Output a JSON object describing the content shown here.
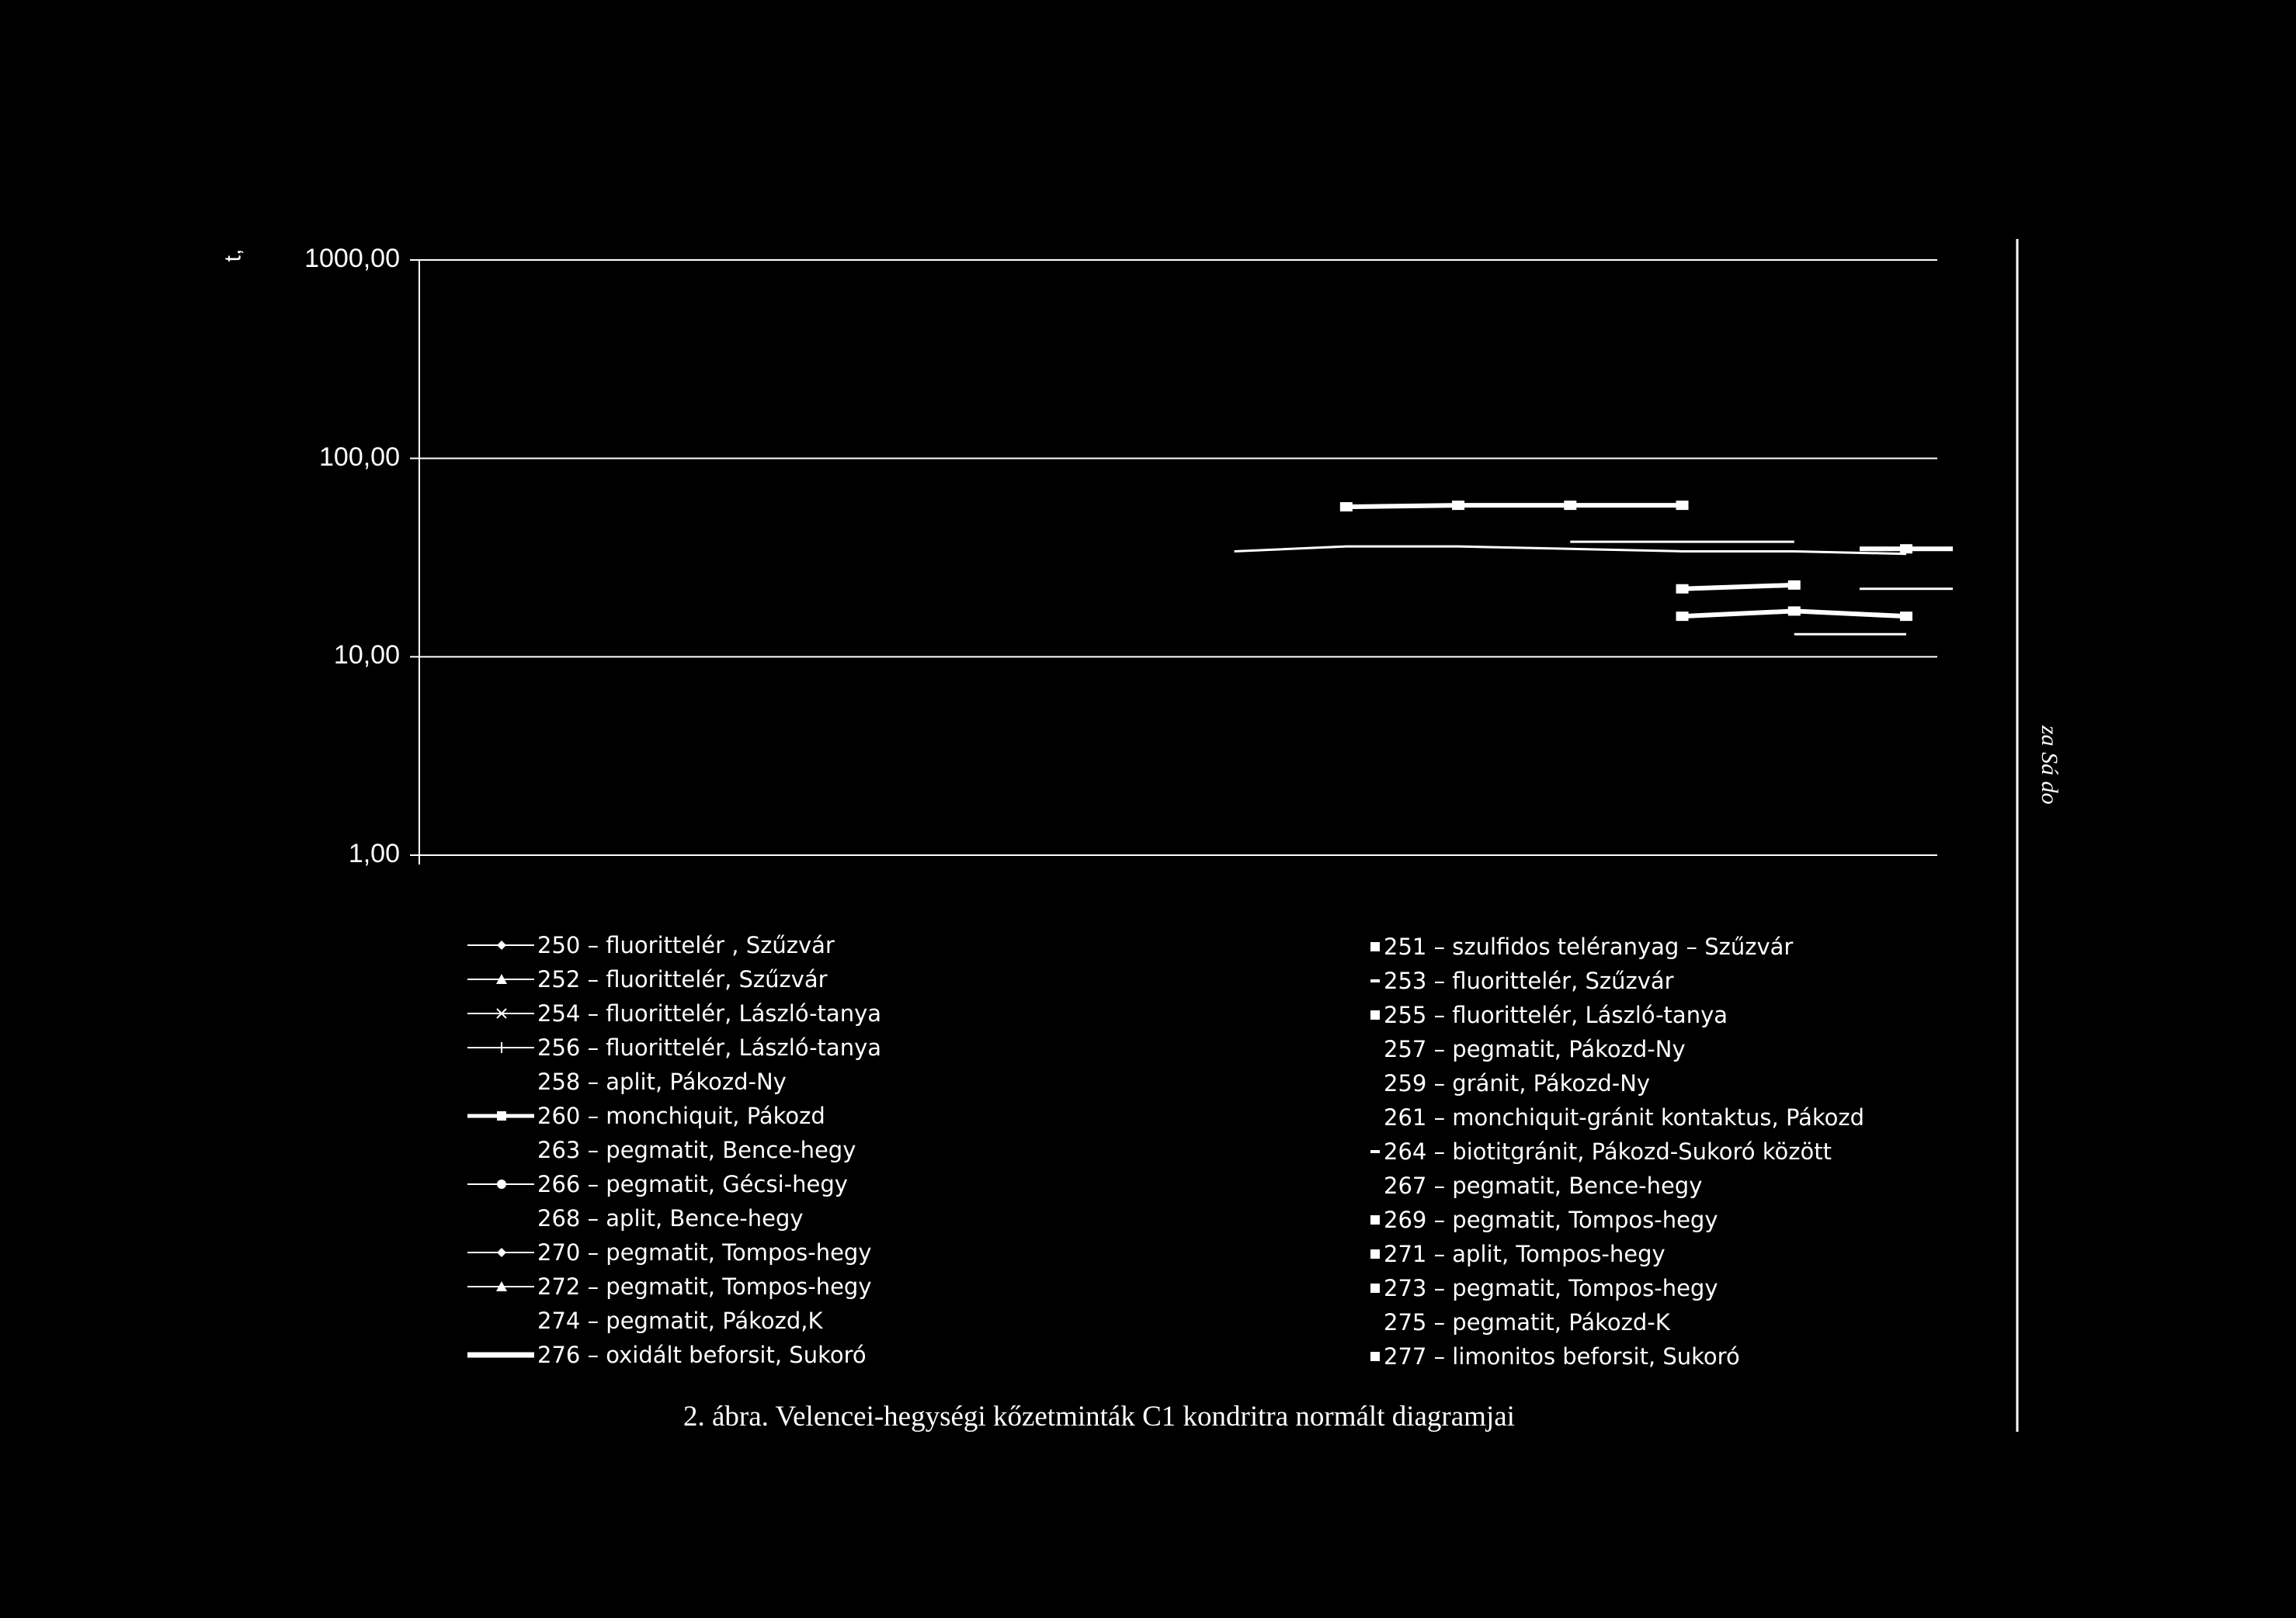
{
  "chart_data": {
    "type": "line",
    "title": "",
    "xlabel": "",
    "ylabel": "",
    "yscale": "log",
    "ylim": [
      1,
      1000
    ],
    "y_ticks": [
      "1000,00",
      "100,00",
      "10,00",
      "1,00"
    ],
    "y_tick_values": [
      1000,
      100,
      10,
      1
    ],
    "grid": true,
    "legend_position": "bottom",
    "x": [
      1,
      2,
      3,
      4,
      5,
      6,
      7,
      8,
      9,
      10,
      11,
      12,
      13,
      14
    ],
    "series": [
      {
        "name": "250 – fluorittelér , Szűzvár",
        "marker": "diamond",
        "values": [
          null,
          null,
          null,
          null,
          null,
          null,
          null,
          null,
          null,
          null,
          38,
          38,
          38,
          null
        ]
      },
      {
        "name": "252 – fluorittelér, Szűzvár",
        "marker": "triangle",
        "values": [
          null,
          null,
          null,
          null,
          null,
          null,
          null,
          null,
          null,
          null,
          null,
          null,
          null,
          null
        ]
      },
      {
        "name": "254 – fluorittelér, László-tanya",
        "marker": "asterisk",
        "values": [
          null,
          null,
          null,
          null,
          null,
          null,
          null,
          null,
          null,
          null,
          null,
          null,
          null,
          null
        ]
      },
      {
        "name": "256 – fluorittelér, László-tanya",
        "marker": "plus",
        "values": [
          null,
          null,
          null,
          null,
          null,
          null,
          null,
          null,
          null,
          null,
          null,
          null,
          null,
          null
        ]
      },
      {
        "name": "258 – aplit, Pákozd-Ny",
        "marker": "none",
        "values": [
          null,
          null,
          null,
          null,
          null,
          null,
          null,
          null,
          null,
          null,
          null,
          null,
          null,
          null
        ]
      },
      {
        "name": "260 – monchiquit, Pákozd",
        "marker": "square",
        "values": [
          null,
          null,
          null,
          null,
          null,
          null,
          null,
          null,
          57,
          58,
          58,
          58,
          null,
          null
        ]
      },
      {
        "name": "263 – pegmatit, Bence-hegy",
        "marker": "none",
        "values": [
          null,
          null,
          null,
          null,
          null,
          null,
          null,
          null,
          null,
          null,
          null,
          null,
          null,
          null
        ]
      },
      {
        "name": "266 – pegmatit, Gécsi-hegy",
        "marker": "circle",
        "values": [
          null,
          null,
          null,
          null,
          null,
          null,
          null,
          34,
          36,
          36,
          35,
          34,
          34,
          33
        ]
      },
      {
        "name": "268 – aplit, Bence-hegy",
        "marker": "none",
        "values": [
          null,
          null,
          null,
          null,
          null,
          null,
          null,
          null,
          null,
          null,
          null,
          null,
          null,
          null
        ]
      },
      {
        "name": "270 – pegmatit, Tompos-hegy",
        "marker": "diamond",
        "values": [
          null,
          null,
          null,
          null,
          null,
          null,
          null,
          null,
          null,
          null,
          null,
          null,
          null,
          22
        ]
      },
      {
        "name": "272 – pegmatit, Tompos-hegy",
        "marker": "triangle",
        "values": [
          null,
          null,
          null,
          null,
          null,
          null,
          null,
          null,
          null,
          null,
          null,
          null,
          null,
          null
        ]
      },
      {
        "name": "274 – pegmatit, Pákozd,K",
        "marker": "none",
        "values": [
          null,
          null,
          null,
          null,
          null,
          null,
          null,
          null,
          null,
          null,
          null,
          null,
          null,
          null
        ]
      },
      {
        "name": "276 – oxidált beforsit, Sukoró",
        "marker": "thick",
        "values": [
          null,
          null,
          null,
          null,
          null,
          null,
          null,
          null,
          null,
          null,
          null,
          null,
          null,
          null
        ]
      },
      {
        "name": "251 – szulfidos teléranyag – Szűzvár",
        "marker": "square",
        "values": [
          null,
          null,
          null,
          null,
          null,
          null,
          null,
          null,
          null,
          null,
          null,
          null,
          null,
          35
        ]
      },
      {
        "name": "253 – fluorittelér, Szűzvár",
        "marker": "square",
        "values": [
          null,
          null,
          null,
          null,
          null,
          null,
          null,
          null,
          null,
          null,
          null,
          null,
          null,
          null
        ]
      },
      {
        "name": "255 – fluorittelér, László-tanya",
        "marker": "square",
        "values": [
          null,
          null,
          null,
          null,
          null,
          null,
          null,
          null,
          null,
          null,
          null,
          16,
          17,
          16
        ]
      },
      {
        "name": "257 – pegmatit, Pákozd-Ny",
        "marker": "none",
        "values": [
          null,
          null,
          null,
          null,
          null,
          null,
          null,
          null,
          null,
          null,
          null,
          null,
          13,
          13
        ]
      },
      {
        "name": "259 – gránit, Pákozd-Ny",
        "marker": "none",
        "values": [
          null,
          null,
          null,
          null,
          null,
          null,
          null,
          null,
          null,
          null,
          null,
          null,
          null,
          null
        ]
      },
      {
        "name": "261 – monchiquit-gránit kontaktus, Pákozd",
        "marker": "none",
        "values": [
          null,
          null,
          null,
          null,
          null,
          null,
          null,
          null,
          null,
          null,
          null,
          null,
          null,
          null
        ]
      },
      {
        "name": "264 – biotitgránit, Pákozd-Sukoró között",
        "marker": "square",
        "values": [
          null,
          null,
          null,
          null,
          null,
          null,
          null,
          null,
          null,
          null,
          null,
          22,
          23,
          null
        ]
      },
      {
        "name": "267 – pegmatit, Bence-hegy",
        "marker": "none",
        "values": [
          null,
          null,
          null,
          null,
          null,
          null,
          null,
          null,
          null,
          null,
          null,
          null,
          null,
          null
        ]
      },
      {
        "name": "269 – pegmatit, Tompos-hegy",
        "marker": "square",
        "values": [
          null,
          null,
          null,
          null,
          null,
          null,
          null,
          null,
          null,
          null,
          null,
          null,
          null,
          null
        ]
      },
      {
        "name": "271 – aplit, Tompos-hegy",
        "marker": "square",
        "values": [
          null,
          null,
          null,
          null,
          null,
          null,
          null,
          null,
          null,
          null,
          null,
          null,
          null,
          null
        ]
      },
      {
        "name": "273 – pegmatit, Tompos-hegy",
        "marker": "square",
        "values": [
          null,
          null,
          null,
          null,
          null,
          null,
          null,
          null,
          null,
          null,
          null,
          null,
          null,
          null
        ]
      },
      {
        "name": "275 – pegmatit, Pákozd-K",
        "marker": "none",
        "values": [
          null,
          null,
          null,
          null,
          null,
          null,
          null,
          null,
          null,
          null,
          null,
          null,
          null,
          null
        ]
      },
      {
        "name": "277 – limonitos beforsit, Sukoró",
        "marker": "square",
        "values": [
          null,
          null,
          null,
          null,
          null,
          null,
          null,
          null,
          null,
          null,
          null,
          null,
          null,
          null
        ]
      }
    ]
  },
  "legend_left": [
    {
      "label": "250 – fluorittelér , Szűzvár",
      "marker": "diamond"
    },
    {
      "label": "252 – fluorittelér, Szűzvár",
      "marker": "triangle"
    },
    {
      "label": "254 – fluorittelér, László-tanya",
      "marker": "asterisk"
    },
    {
      "label": "256 – fluorittelér, László-tanya",
      "marker": "plus"
    },
    {
      "label": "258 – aplit, Pákozd-Ny",
      "marker": "none"
    },
    {
      "label": "260 – monchiquit, Pákozd",
      "marker": "square"
    },
    {
      "label": "263 – pegmatit, Bence-hegy",
      "marker": "none"
    },
    {
      "label": "266 – pegmatit, Gécsi-hegy",
      "marker": "circle"
    },
    {
      "label": "268 – aplit, Bence-hegy",
      "marker": "none"
    },
    {
      "label": "270 – pegmatit, Tompos-hegy",
      "marker": "diamond"
    },
    {
      "label": "272 – pegmatit, Tompos-hegy",
      "marker": "triangle"
    },
    {
      "label": "274 – pegmatit, Pákozd,K",
      "marker": "none"
    },
    {
      "label": "276 – oxidált beforsit, Sukoró",
      "marker": "thick"
    }
  ],
  "legend_right": [
    {
      "label": "251 – szulfidos teléranyag – Szűzvár",
      "marker": "square"
    },
    {
      "label": "253 – fluorittelér, Szűzvár",
      "marker": "dash"
    },
    {
      "label": "255 – fluorittelér, László-tanya",
      "marker": "square"
    },
    {
      "label": "257 – pegmatit, Pákozd-Ny",
      "marker": "none"
    },
    {
      "label": "259 – gránit, Pákozd-Ny",
      "marker": "none"
    },
    {
      "label": "261 – monchiquit-gránit kontaktus, Pákozd",
      "marker": "none"
    },
    {
      "label": "264 – biotitgránit, Pákozd-Sukoró között",
      "marker": "dash"
    },
    {
      "label": "267 – pegmatit, Bence-hegy",
      "marker": "none"
    },
    {
      "label": "269 – pegmatit, Tompos-hegy",
      "marker": "square"
    },
    {
      "label": "271 – aplit, Tompos-hegy",
      "marker": "square"
    },
    {
      "label": "273 – pegmatit, Tompos-hegy",
      "marker": "square"
    },
    {
      "label": "275 – pegmatit, Pákozd-K",
      "marker": "none"
    },
    {
      "label": "277 – limonitos beforsit, Sukoró",
      "marker": "square"
    }
  ],
  "caption": "2. ábra. Velencei-hegységi kőzetminták C1 kondritra normált diagramjai",
  "side_text": "za Sá do",
  "corner_mark": "t,",
  "colors": {
    "background": "#000000",
    "foreground": "#ffffff"
  }
}
